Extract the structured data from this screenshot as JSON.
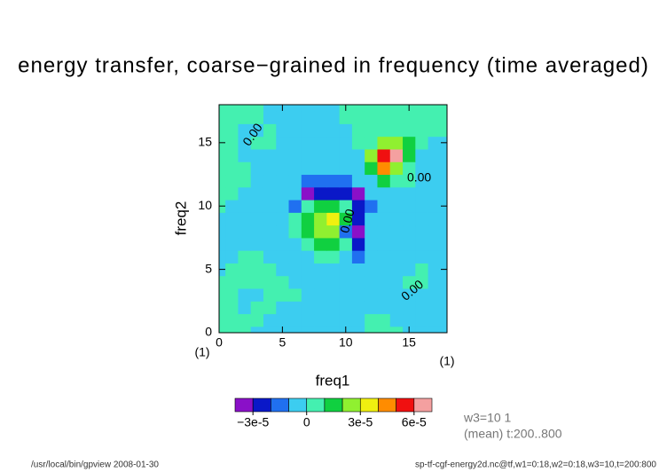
{
  "chart_data": {
    "type": "contour",
    "title": "energy transfer, coarse−grained in frequency (time averaged)",
    "x_label": "freq1",
    "y_label": "freq2",
    "x_unit": "(1)",
    "y_unit": "(1)",
    "xlim": [
      0,
      18
    ],
    "ylim": [
      0,
      18
    ],
    "xticks": [
      0,
      5,
      10,
      15
    ],
    "yticks": [
      0,
      5,
      10,
      15
    ],
    "x": [
      0,
      1,
      2,
      3,
      4,
      5,
      6,
      7,
      8,
      9,
      10,
      11,
      12,
      13,
      14,
      15,
      16,
      17,
      18
    ],
    "y": [
      0,
      1,
      2,
      3,
      4,
      5,
      6,
      7,
      8,
      9,
      10,
      11,
      12,
      13,
      14,
      15,
      16,
      17,
      18
    ],
    "z": [
      [
        5e-06,
        5e-06,
        5e-06,
        -5e-06,
        -5e-06,
        -5e-06,
        -5e-06,
        -5e-06,
        -5e-06,
        -5e-06,
        -5e-06,
        -5e-06,
        5e-06,
        5e-06,
        5e-06,
        -5e-06,
        -5e-06,
        -5e-06,
        -5e-06
      ],
      [
        5e-06,
        5e-06,
        5e-06,
        5e-06,
        -5e-06,
        -5e-06,
        -5e-06,
        -5e-06,
        -5e-06,
        -5e-06,
        -5e-06,
        -5e-06,
        5e-06,
        5e-06,
        -5e-06,
        -5e-06,
        -5e-06,
        -5e-06,
        -5e-06
      ],
      [
        5e-06,
        5e-06,
        -5e-06,
        5e-06,
        5e-06,
        -5e-06,
        -5e-06,
        -5e-06,
        -5e-06,
        -5e-06,
        -5e-06,
        -5e-06,
        -5e-06,
        -5e-06,
        -5e-06,
        -5e-06,
        -5e-06,
        -5e-06,
        -5e-06
      ],
      [
        5e-06,
        5e-06,
        -5e-06,
        -5e-06,
        5e-06,
        5e-06,
        5e-06,
        -5e-06,
        -5e-06,
        -5e-06,
        -5e-06,
        -5e-06,
        -5e-06,
        -5e-06,
        -5e-06,
        -5e-06,
        -5e-06,
        -5e-06,
        -5e-06
      ],
      [
        5e-06,
        5e-06,
        5e-06,
        5e-06,
        5e-06,
        5e-06,
        -5e-06,
        -5e-06,
        -5e-06,
        -5e-06,
        -5e-06,
        -5e-06,
        -5e-06,
        -5e-06,
        -5e-06,
        5e-06,
        5e-06,
        -5e-06,
        -5e-06
      ],
      [
        -5e-06,
        5e-06,
        5e-06,
        5e-06,
        5e-06,
        -5e-06,
        -5e-06,
        -5e-06,
        -5e-06,
        -5e-06,
        -5e-06,
        -5e-06,
        -5e-06,
        -5e-06,
        -5e-06,
        -5e-06,
        5e-06,
        -5e-06,
        -5e-06
      ],
      [
        -5e-06,
        -5e-06,
        5e-06,
        5e-06,
        -5e-06,
        -5e-06,
        -5e-06,
        -5e-06,
        5e-06,
        5e-06,
        -5e-06,
        -1.5e-05,
        -5e-06,
        -5e-06,
        -5e-06,
        -5e-06,
        -5e-06,
        -5e-06,
        -5e-06
      ],
      [
        -5e-06,
        -5e-06,
        -5e-06,
        -5e-06,
        -5e-06,
        -5e-06,
        -5e-06,
        5e-06,
        1.5e-05,
        1.5e-05,
        5e-06,
        -2.5e-05,
        -5e-06,
        -5e-06,
        -5e-06,
        -5e-06,
        -5e-06,
        -5e-06,
        -5e-06
      ],
      [
        -5e-06,
        -5e-06,
        -5e-06,
        -5e-06,
        -5e-06,
        -5e-06,
        5e-06,
        1.5e-05,
        2.5e-05,
        2.5e-05,
        -1.5e-05,
        -3.5e-05,
        -5e-06,
        -5e-06,
        -5e-06,
        -5e-06,
        -5e-06,
        -5e-06,
        -5e-06
      ],
      [
        -5e-06,
        -5e-06,
        -5e-06,
        -5e-06,
        -5e-06,
        -5e-06,
        5e-06,
        1.5e-05,
        2.5e-05,
        3.5e-05,
        1.5e-05,
        -2.5e-05,
        -5e-06,
        -5e-06,
        -5e-06,
        -5e-06,
        -5e-06,
        -5e-06,
        -5e-06
      ],
      [
        5e-06,
        -5e-06,
        -5e-06,
        -5e-06,
        -5e-06,
        -5e-06,
        -1.5e-05,
        5e-06,
        1.5e-05,
        1.5e-05,
        5e-06,
        -2.5e-05,
        -1.5e-05,
        -5e-06,
        -5e-06,
        -5e-06,
        -5e-06,
        -5e-06,
        -5e-06
      ],
      [
        5e-06,
        5e-06,
        -5e-06,
        -5e-06,
        -5e-06,
        -5e-06,
        -5e-06,
        -3.5e-05,
        -2.5e-05,
        -2.5e-05,
        -2.5e-05,
        -3.5e-05,
        -5e-06,
        -5e-06,
        -5e-06,
        -5e-06,
        -5e-06,
        -5e-06,
        -5e-06
      ],
      [
        5e-06,
        5e-06,
        5e-06,
        -5e-06,
        -5e-06,
        -5e-06,
        -5e-06,
        -1.5e-05,
        -1.5e-05,
        -1.5e-05,
        -1.5e-05,
        -5e-06,
        -5e-06,
        1.5e-05,
        5e-06,
        5e-06,
        -5e-06,
        -5e-06,
        -5e-06
      ],
      [
        5e-06,
        5e-06,
        5e-06,
        -5e-06,
        -5e-06,
        -5e-06,
        -5e-06,
        -5e-06,
        -5e-06,
        -5e-06,
        -5e-06,
        -5e-06,
        1.5e-05,
        4.5e-05,
        2.5e-05,
        5e-06,
        -5e-06,
        -5e-06,
        -5e-06
      ],
      [
        5e-06,
        5e-06,
        -5e-06,
        -5e-06,
        -5e-06,
        -5e-06,
        -5e-06,
        -5e-06,
        -5e-06,
        -5e-06,
        -5e-06,
        -5e-06,
        2.5e-05,
        5.5e-05,
        6.5e-05,
        1.5e-05,
        -5e-06,
        -5e-06,
        -5e-06
      ],
      [
        5e-06,
        5e-06,
        -5e-06,
        5e-06,
        5e-06,
        -5e-06,
        -5e-06,
        -5e-06,
        -5e-06,
        -5e-06,
        -5e-06,
        5e-06,
        5e-06,
        2.5e-05,
        2.5e-05,
        1.5e-05,
        5e-06,
        -5e-06,
        -5e-06
      ],
      [
        5e-06,
        5e-06,
        -5e-06,
        -5e-06,
        5e-06,
        -5e-06,
        -5e-06,
        -5e-06,
        -5e-06,
        -5e-06,
        -5e-06,
        5e-06,
        5e-06,
        5e-06,
        5e-06,
        5e-06,
        5e-06,
        5e-06,
        5e-06
      ],
      [
        5e-06,
        5e-06,
        5e-06,
        5e-06,
        -5e-06,
        -5e-06,
        -5e-06,
        -5e-06,
        -5e-06,
        -5e-06,
        5e-06,
        5e-06,
        5e-06,
        5e-06,
        5e-06,
        5e-06,
        5e-06,
        5e-06,
        5e-06
      ],
      [
        5e-06,
        5e-06,
        5e-06,
        5e-06,
        -5e-06,
        -5e-06,
        -5e-06,
        -5e-06,
        -5e-06,
        -5e-06,
        5e-06,
        5e-06,
        5e-06,
        5e-06,
        5e-06,
        5e-06,
        5e-06,
        5e-06,
        5e-06
      ]
    ],
    "levels": [
      -4e-05,
      -3e-05,
      -2e-05,
      -1e-05,
      0,
      1e-05,
      2e-05,
      3e-05,
      4e-05,
      5e-05,
      6e-05,
      7e-05
    ],
    "colors": [
      "#8a10c8",
      "#0a18c8",
      "#2070f0",
      "#3ccdf0",
      "#44f0b0",
      "#10d040",
      "#90f030",
      "#f0f010",
      "#ff8c00",
      "#f01010",
      "#f4a0a0"
    ],
    "colorbar_ticks": [
      {
        "value": -3e-05,
        "label": "−3e-5"
      },
      0,
      {
        "value": 3e-05,
        "label": "3e-5"
      },
      {
        "value": 6e-05,
        "label": "6e-5"
      }
    ],
    "contour_labels": [
      "0.00",
      "0.00",
      "0.00",
      "0.00"
    ],
    "info": [
      "w3=10 1",
      "(mean) t:200..800"
    ],
    "footer_left": "/usr/local/bin/gpview   2008-01-30",
    "footer_right": "sp-tf-cgf-energy2d.nc@tf,w1=0:18,w2=0:18,w3=10,t=200:800"
  }
}
